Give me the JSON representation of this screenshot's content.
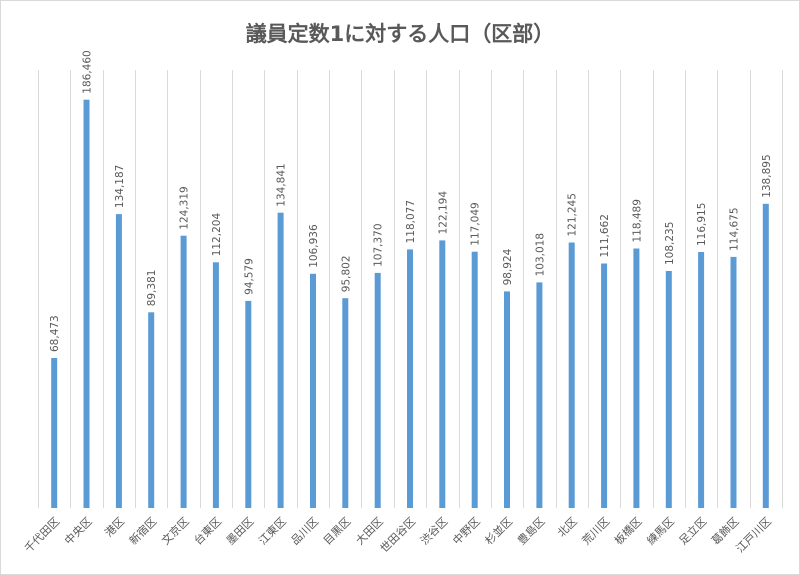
{
  "chart_data": {
    "type": "bar",
    "title": "議員定数1に対する人口（区部）",
    "xlabel": "",
    "ylabel": "",
    "ylim": [
      0,
      200000
    ],
    "grid": "vertical",
    "bar_color": "#5b9bd5",
    "categories": [
      "千代田区",
      "中央区",
      "港区",
      "新宿区",
      "文京区",
      "台東区",
      "墨田区",
      "江東区",
      "品川区",
      "目黒区",
      "大田区",
      "世田谷区",
      "渋谷区",
      "中野区",
      "杉並区",
      "豊島区",
      "北区",
      "荒川区",
      "板橋区",
      "練馬区",
      "足立区",
      "葛飾区",
      "江戸川区"
    ],
    "values": [
      68473,
      186460,
      134187,
      89381,
      124319,
      112204,
      94579,
      134841,
      106936,
      95802,
      107370,
      118077,
      122194,
      117049,
      98924,
      103018,
      121245,
      111662,
      118489,
      108235,
      116915,
      114675,
      138895
    ],
    "value_labels": [
      "68,473",
      "186,460",
      "134,187",
      "89,381",
      "124,319",
      "112,204",
      "94,579",
      "134,841",
      "106,936",
      "95,802",
      "107,370",
      "118,077",
      "122,194",
      "117,049",
      "98,924",
      "103,018",
      "121,245",
      "111,662",
      "118,489",
      "108,235",
      "116,915",
      "114,675",
      "138,895"
    ]
  }
}
